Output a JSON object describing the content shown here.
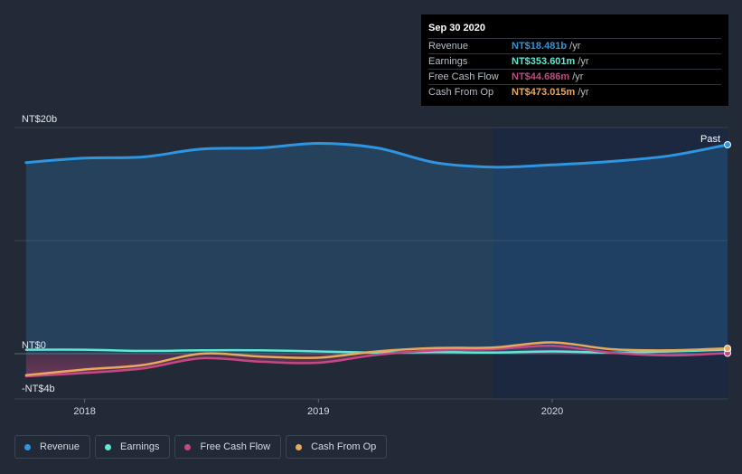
{
  "chart_data": {
    "type": "area",
    "x_ticks": [
      {
        "label": "2018",
        "t": 2018.0
      },
      {
        "label": "2019",
        "t": 2019.0
      },
      {
        "label": "2020",
        "t": 2020.0
      }
    ],
    "y_ticks": [
      {
        "label": "NT$20b",
        "v": 20
      },
      {
        "label": "NT$0",
        "v": 0
      },
      {
        "label": "-NT$4b",
        "v": -4
      }
    ],
    "y_unit": "NT$ billions",
    "xlim": [
      2017.7,
      2020.75
    ],
    "ylim": [
      -4,
      20
    ],
    "highlight_start": 2019.75,
    "past_label": "Past",
    "series": [
      {
        "name": "Revenue",
        "color": "#2e95e0",
        "fill": true,
        "x": [
          2017.75,
          2018.0,
          2018.25,
          2018.5,
          2018.75,
          2019.0,
          2019.25,
          2019.5,
          2019.75,
          2020.0,
          2020.25,
          2020.5,
          2020.75
        ],
        "y": [
          16.9,
          17.3,
          17.4,
          18.1,
          18.2,
          18.6,
          18.2,
          16.9,
          16.5,
          16.7,
          17.0,
          17.5,
          18.481
        ]
      },
      {
        "name": "Earnings",
        "color": "#5ce8d2",
        "fill": false,
        "x": [
          2017.75,
          2018.0,
          2018.25,
          2018.5,
          2018.75,
          2019.0,
          2019.25,
          2019.5,
          2019.75,
          2020.0,
          2020.25,
          2020.5,
          2020.75
        ],
        "y": [
          0.35,
          0.35,
          0.25,
          0.3,
          0.3,
          0.2,
          0.1,
          0.15,
          0.1,
          0.2,
          0.1,
          0.2,
          0.354
        ]
      },
      {
        "name": "Free Cash Flow",
        "color": "#c64784",
        "fill": true,
        "x": [
          2017.75,
          2018.0,
          2018.25,
          2018.5,
          2018.75,
          2019.0,
          2019.25,
          2019.5,
          2019.75,
          2020.0,
          2020.25,
          2020.5,
          2020.75
        ],
        "y": [
          -2.0,
          -1.7,
          -1.3,
          -0.4,
          -0.7,
          -0.8,
          -0.1,
          0.3,
          0.4,
          0.7,
          0.1,
          -0.15,
          0.045
        ]
      },
      {
        "name": "Cash From Op",
        "color": "#e8a95d",
        "fill": false,
        "x": [
          2017.75,
          2018.0,
          2018.25,
          2018.5,
          2018.75,
          2019.0,
          2019.25,
          2019.5,
          2019.75,
          2020.0,
          2020.25,
          2020.5,
          2020.75
        ],
        "y": [
          -1.9,
          -1.4,
          -1.0,
          0.0,
          -0.25,
          -0.35,
          0.2,
          0.5,
          0.55,
          1.0,
          0.4,
          0.3,
          0.473
        ]
      }
    ]
  },
  "tooltip": {
    "date": "Sep 30 2020",
    "rows": [
      {
        "label": "Revenue",
        "value": "NT$18.481b",
        "unit": "/yr",
        "color": "#2e95e0"
      },
      {
        "label": "Earnings",
        "value": "NT$353.601m",
        "unit": "/yr",
        "color": "#5ce8d2"
      },
      {
        "label": "Free Cash Flow",
        "value": "NT$44.686m",
        "unit": "/yr",
        "color": "#c64784"
      },
      {
        "label": "Cash From Op",
        "value": "NT$473.015m",
        "unit": "/yr",
        "color": "#e8a95d"
      }
    ]
  },
  "legend": [
    {
      "label": "Revenue",
      "color": "#2e95e0"
    },
    {
      "label": "Earnings",
      "color": "#5ce8d2"
    },
    {
      "label": "Free Cash Flow",
      "color": "#c64784"
    },
    {
      "label": "Cash From Op",
      "color": "#e8a95d"
    }
  ]
}
